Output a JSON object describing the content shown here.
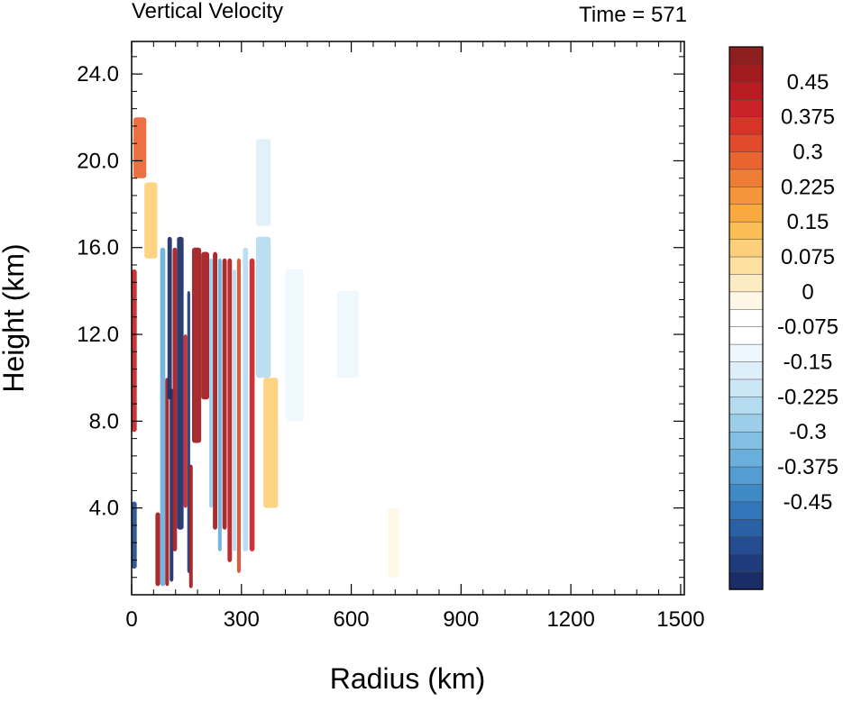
{
  "chart_data": {
    "type": "heatmap",
    "title": "Vertical Velocity",
    "time_label": "Time = 571",
    "xlabel": "Radius (km)",
    "ylabel": "Height (km)",
    "xlim": [
      0,
      1510
    ],
    "ylim": [
      0,
      25.5
    ],
    "x_ticks": [
      "0",
      "300",
      "600",
      "900",
      "1200",
      "1500"
    ],
    "y_ticks": [
      "4.0",
      "8.0",
      "12.0",
      "16.0",
      "20.0",
      "24.0"
    ],
    "colorbar": {
      "labels": [
        "0.45",
        "0.375",
        "0.3",
        "0.225",
        "0.15",
        "0.075",
        "0",
        "-0.075",
        "-0.15",
        "-0.225",
        "-0.3",
        "-0.375",
        "-0.45"
      ],
      "colors": [
        "#8e1f1f",
        "#a11b1f",
        "#b71c22",
        "#c92327",
        "#d73327",
        "#e14a2b",
        "#ea6431",
        "#f07d36",
        "#f5953b",
        "#f8aa40",
        "#fbbe55",
        "#fcd07a",
        "#fde0a0",
        "#fdecc3",
        "#fef7e6",
        "#ffffff",
        "#ffffff",
        "#eef7fd",
        "#deeff9",
        "#cbe6f5",
        "#b5dbf0",
        "#9ccde9",
        "#83bfe2",
        "#6aafdb",
        "#539dd2",
        "#3f89c6",
        "#3275b8",
        "#2a60a6",
        "#244c91",
        "#1f3b7c",
        "#1b2d66"
      ]
    },
    "features": [
      {
        "r0": 0,
        "r1": 14,
        "z0": 7.5,
        "z1": 15.0,
        "w": 0.4
      },
      {
        "r0": 0,
        "r1": 14,
        "z0": 1.2,
        "z1": 4.3,
        "w": -0.42
      },
      {
        "r0": 5,
        "r1": 40,
        "z0": 19.2,
        "z1": 22.0,
        "w": 0.3
      },
      {
        "r0": 35,
        "r1": 70,
        "z0": 15.5,
        "z1": 19.0,
        "w": 0.12
      },
      {
        "r0": 65,
        "r1": 78,
        "z0": 0.4,
        "z1": 3.8,
        "w": 0.48
      },
      {
        "r0": 78,
        "r1": 92,
        "z0": 0.4,
        "z1": 16.0,
        "w": -0.25
      },
      {
        "r0": 92,
        "r1": 102,
        "z0": 0.4,
        "z1": 10.0,
        "w": 0.48
      },
      {
        "r0": 98,
        "r1": 110,
        "z0": 9.0,
        "z1": 16.5,
        "w": -0.5
      },
      {
        "r0": 104,
        "r1": 114,
        "z0": 0.6,
        "z1": 9.5,
        "w": -0.5
      },
      {
        "r0": 112,
        "r1": 124,
        "z0": 2.0,
        "z1": 16.0,
        "w": 0.48
      },
      {
        "r0": 124,
        "r1": 142,
        "z0": 3.0,
        "z1": 16.5,
        "w": -0.5
      },
      {
        "r0": 142,
        "r1": 152,
        "z0": 4.0,
        "z1": 12.0,
        "w": 0.4
      },
      {
        "r0": 152,
        "r1": 160,
        "z0": 1.0,
        "z1": 14.0,
        "w": -0.45
      },
      {
        "r0": 157,
        "r1": 167,
        "z0": 0.3,
        "z1": 6.0,
        "w": 0.48
      },
      {
        "r0": 165,
        "r1": 190,
        "z0": 7.0,
        "z1": 16.0,
        "w": 0.45
      },
      {
        "r0": 190,
        "r1": 212,
        "z0": 9.0,
        "z1": 15.8,
        "w": 0.48
      },
      {
        "r0": 212,
        "r1": 222,
        "z0": 4.0,
        "z1": 15.5,
        "w": -0.2
      },
      {
        "r0": 222,
        "r1": 234,
        "z0": 3.0,
        "z1": 15.8,
        "w": 0.45
      },
      {
        "r0": 236,
        "r1": 246,
        "z0": 2.0,
        "z1": 15.5,
        "w": -0.25
      },
      {
        "r0": 248,
        "r1": 260,
        "z0": 3.0,
        "z1": 15.5,
        "w": 0.45
      },
      {
        "r0": 262,
        "r1": 274,
        "z0": 1.5,
        "z1": 15.5,
        "w": 0.42
      },
      {
        "r0": 276,
        "r1": 286,
        "z0": 2.0,
        "z1": 15.0,
        "w": -0.18
      },
      {
        "r0": 288,
        "r1": 298,
        "z0": 1.0,
        "z1": 15.5,
        "w": 0.35
      },
      {
        "r0": 304,
        "r1": 318,
        "z0": 2.0,
        "z1": 16.0,
        "w": -0.15
      },
      {
        "r0": 322,
        "r1": 336,
        "z0": 2.0,
        "z1": 15.5,
        "w": 0.4
      },
      {
        "r0": 340,
        "r1": 380,
        "z0": 10.0,
        "z1": 16.5,
        "w": -0.15
      },
      {
        "r0": 360,
        "r1": 400,
        "z0": 4.0,
        "z1": 10.0,
        "w": 0.12
      },
      {
        "r0": 340,
        "r1": 380,
        "z0": 17.0,
        "z1": 21.0,
        "w": -0.1
      },
      {
        "r0": 420,
        "r1": 470,
        "z0": 8.0,
        "z1": 15.0,
        "w": -0.06
      },
      {
        "r0": 560,
        "r1": 620,
        "z0": 10.0,
        "z1": 14.0,
        "w": -0.05
      },
      {
        "r0": 700,
        "r1": 730,
        "z0": 0.8,
        "z1": 4.0,
        "w": 0.05
      }
    ]
  }
}
